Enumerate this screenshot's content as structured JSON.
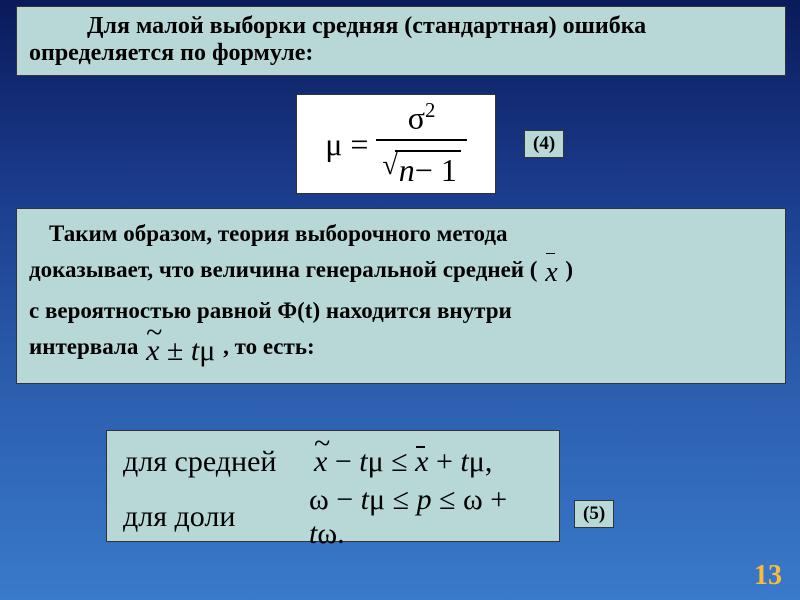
{
  "colors": {
    "box_bg": "#b8d8d8",
    "formula_bg": "#ffffff",
    "border": "#333333",
    "slide_num": "#f9bd3a",
    "bg_gradient_top": "#0a1a5a",
    "bg_gradient_bottom": "#3a7aca"
  },
  "box1": {
    "text": "Для малой выборки средняя (стандартная) ошибка определяется по формуле:"
  },
  "formula1": {
    "lhs_symbol": "μ",
    "equals": "=",
    "numerator_base": "σ",
    "numerator_exp": "2",
    "denominator_var": "n",
    "denominator_minus": "− 1",
    "label": "(4)"
  },
  "box2": {
    "line1": "Таким образом, теория выборочного метода",
    "line2a": "доказывает, что величина генеральной средней (",
    "xbar": "x",
    "line2b": ")",
    "line3": " с вероятностью равной Ф(t) находится внутри",
    "line4a": "интервала ",
    "interval_x": "x",
    "interval_pm": " ± ",
    "interval_t": "t",
    "interval_mu": "μ",
    "line4b": " , то есть:"
  },
  "formula3": {
    "row1_label": "для средней",
    "row1_x1": "x",
    "row1_minus": " − ",
    "row1_t1": "t",
    "row1_mu1": "μ",
    "row1_leq1": " ≤ ",
    "row1_x2": "x",
    "row1_plus": " + ",
    "row1_t2": "t",
    "row1_mu2": "μ,",
    "row2_label": "для доли",
    "row2_omega1": "ω",
    "row2_minus": " − ",
    "row2_t1": "t",
    "row2_mu1": "μ",
    "row2_leq1": " ≤ ",
    "row2_p": "p",
    "row2_leq2": " ≤ ",
    "row2_omega2": "ω",
    "row2_plus": " + ",
    "row2_t2": "t",
    "row2_omega3": "ω.",
    "label": "(5)"
  },
  "slide_number": "13"
}
